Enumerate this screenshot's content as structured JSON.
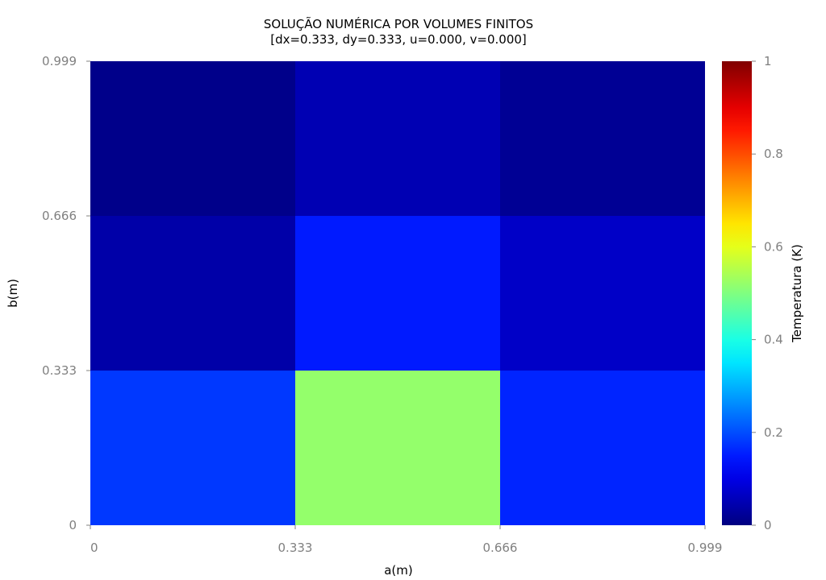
{
  "chart_data": {
    "type": "heatmap",
    "title": "SOLUÇÃO NUMÉRICA POR VOLUMES FINITOS",
    "subtitle": "[dx=0.333, dy=0.333, u=0.000, v=0.000]",
    "xlabel": "a(m)",
    "ylabel": "b(m)",
    "xlim": [
      0,
      0.999
    ],
    "ylim": [
      0,
      0.999
    ],
    "x_edges": [
      0,
      0.333,
      0.666,
      0.999
    ],
    "y_edges": [
      0,
      0.333,
      0.666,
      0.999
    ],
    "x_tick_labels": [
      "0",
      "0.333",
      "0.666",
      "0.999"
    ],
    "y_tick_labels": [
      "0",
      "0.333",
      "0.666",
      "0.999"
    ],
    "values_by_row_bottom_to_top": [
      [
        0.18,
        0.52,
        0.16
      ],
      [
        0.04,
        0.15,
        0.07
      ],
      [
        0.01,
        0.05,
        0.02
      ]
    ],
    "colormap": "jet",
    "colorbar": {
      "label": "Temperatura (K)",
      "range": [
        0,
        1
      ],
      "tick_values": [
        0,
        0.2,
        0.4,
        0.6,
        0.8,
        1
      ],
      "tick_labels": [
        "0",
        "0.2",
        "0.4",
        "0.6",
        "0.8",
        "1"
      ],
      "placement": "right"
    },
    "grid": false
  }
}
